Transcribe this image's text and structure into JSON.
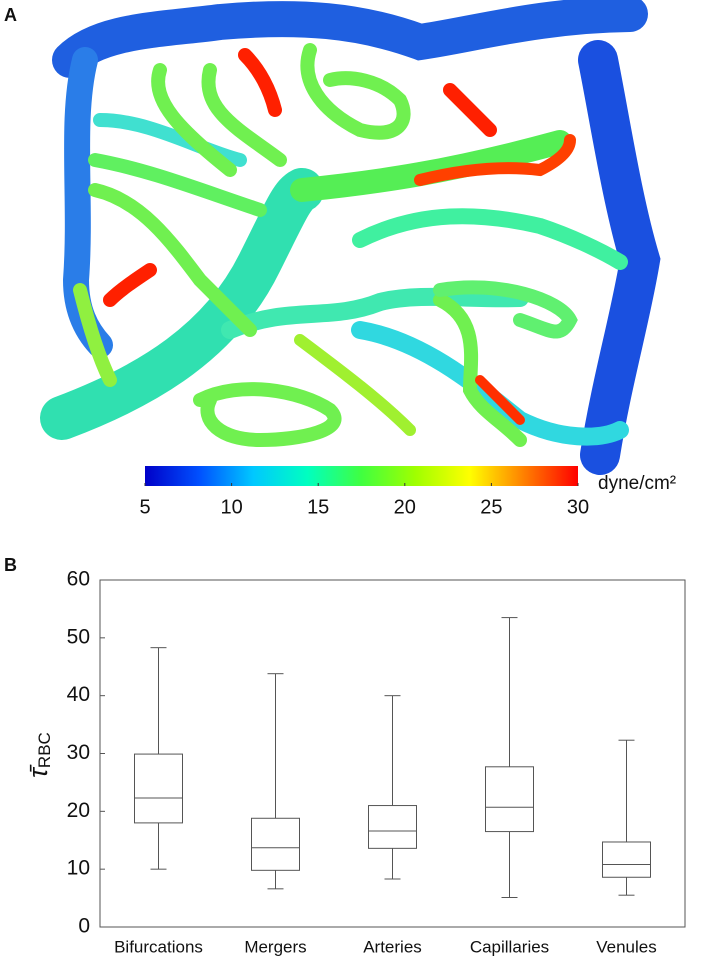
{
  "chart_data": [
    {
      "type": "colorbar",
      "panel_label": "A",
      "clim": [
        5,
        30
      ],
      "ticks": [
        5,
        10,
        15,
        20,
        25,
        30
      ],
      "unit": "dyne/cm²",
      "colormap": [
        "#0000c8",
        "#0050ff",
        "#00c8ff",
        "#00ffc0",
        "#40ff40",
        "#a0ff00",
        "#ffff00",
        "#ff8000",
        "#ff0000"
      ]
    },
    {
      "type": "box",
      "panel_label": "B",
      "ylabel": "τ̄",
      "ylabel_subscript": "RBC",
      "categories": [
        "Bifurcations",
        "Mergers",
        "Arteries",
        "Capillaries",
        "Venules"
      ],
      "boxes": [
        {
          "min": 10,
          "q1": 18,
          "median": 22.3,
          "q3": 29.9,
          "max": 48.3
        },
        {
          "min": 6.6,
          "q1": 9.8,
          "median": 13.7,
          "q3": 18.8,
          "max": 43.8
        },
        {
          "min": 8.3,
          "q1": 13.6,
          "median": 16.6,
          "q3": 21,
          "max": 40
        },
        {
          "min": 5.1,
          "q1": 16.5,
          "median": 20.7,
          "q3": 27.7,
          "max": 53.5
        },
        {
          "min": 5.5,
          "q1": 8.6,
          "median": 10.8,
          "q3": 14.7,
          "max": 32.3
        }
      ],
      "color": "#555555",
      "ylim": [
        0,
        60
      ],
      "yticks": [
        0,
        10,
        20,
        30,
        40,
        50,
        60
      ]
    }
  ]
}
